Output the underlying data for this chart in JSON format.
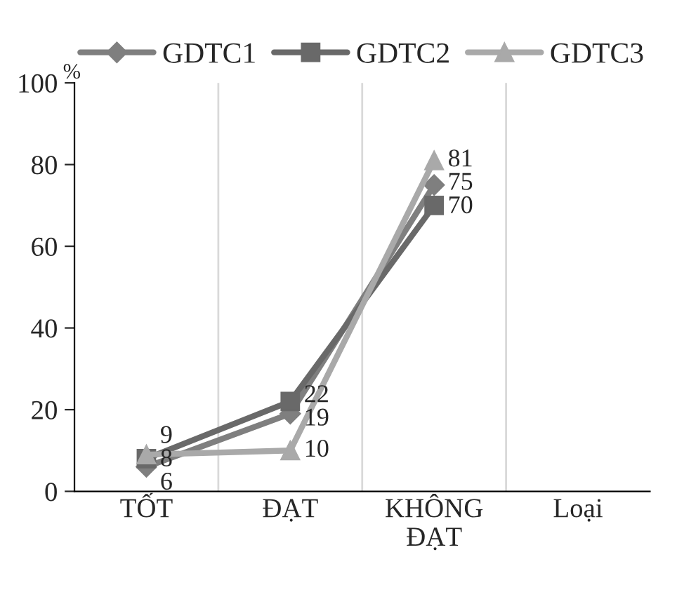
{
  "chart_data": {
    "type": "line",
    "ylabel": "%",
    "categories": [
      "TỐT",
      "ĐẠT",
      "KHÔNG\nĐẠT",
      "Loại"
    ],
    "series": [
      {
        "name": "GDTC1",
        "color": "#7f7f7f",
        "marker": "diamond",
        "values": [
          6,
          19,
          75,
          null
        ]
      },
      {
        "name": "GDTC2",
        "color": "#696969",
        "marker": "square",
        "values": [
          8,
          22,
          70,
          null
        ]
      },
      {
        "name": "GDTC3",
        "color": "#a9a9a9",
        "marker": "triangle",
        "values": [
          9,
          10,
          81,
          null
        ]
      }
    ],
    "ylim": [
      0,
      100
    ],
    "yticks": [
      0,
      20,
      40,
      60,
      80,
      100
    ],
    "grid": "x",
    "legend": "top",
    "data_labels": true
  }
}
